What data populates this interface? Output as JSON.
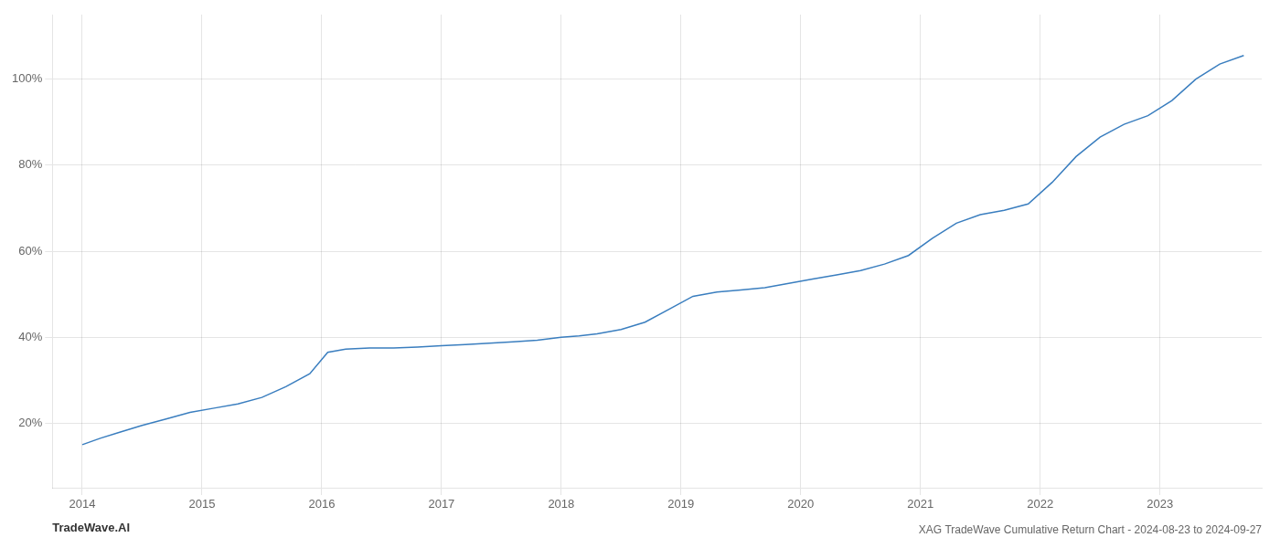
{
  "chart_data": {
    "type": "line",
    "title": "XAG TradeWave Cumulative Return Chart - 2024-08-23 to 2024-09-27",
    "annotations": [
      "TradeWave.AI"
    ],
    "x": [
      2014.0,
      2014.15,
      2014.3,
      2014.5,
      2014.7,
      2014.9,
      2015.1,
      2015.3,
      2015.5,
      2015.7,
      2015.9,
      2016.05,
      2016.2,
      2016.4,
      2016.6,
      2016.8,
      2017.0,
      2017.2,
      2017.4,
      2017.6,
      2017.8,
      2018.0,
      2018.15,
      2018.3,
      2018.5,
      2018.7,
      2018.9,
      2019.1,
      2019.3,
      2019.5,
      2019.7,
      2019.9,
      2020.1,
      2020.3,
      2020.5,
      2020.7,
      2020.9,
      2021.1,
      2021.3,
      2021.5,
      2021.7,
      2021.9,
      2022.1,
      2022.3,
      2022.5,
      2022.7,
      2022.9,
      2023.1,
      2023.3,
      2023.5,
      2023.7
    ],
    "values": [
      15.0,
      16.5,
      17.8,
      19.5,
      21.0,
      22.5,
      23.5,
      24.5,
      26.0,
      28.5,
      31.5,
      36.5,
      37.2,
      37.5,
      37.5,
      37.7,
      38.0,
      38.3,
      38.6,
      38.9,
      39.3,
      40.0,
      40.3,
      40.8,
      41.8,
      43.5,
      46.5,
      49.5,
      50.5,
      51.0,
      51.5,
      52.5,
      53.5,
      54.5,
      55.5,
      57.0,
      59.0,
      63.0,
      66.5,
      68.5,
      69.5,
      71.0,
      76.0,
      82.0,
      86.5,
      89.5,
      91.5,
      95.0,
      100.0,
      103.5,
      105.5
    ],
    "color": "#3a7ebf",
    "xlim": [
      2013.75,
      2023.85
    ],
    "ylim": [
      5,
      115
    ],
    "xticks": [
      2014,
      2015,
      2016,
      2017,
      2018,
      2019,
      2020,
      2021,
      2022,
      2023
    ],
    "yticks": [
      {
        "value": 20,
        "label": "20%"
      },
      {
        "value": 40,
        "label": "40%"
      },
      {
        "value": 60,
        "label": "60%"
      },
      {
        "value": 80,
        "label": "80%"
      },
      {
        "value": 100,
        "label": "100%"
      }
    ],
    "grid": true
  }
}
